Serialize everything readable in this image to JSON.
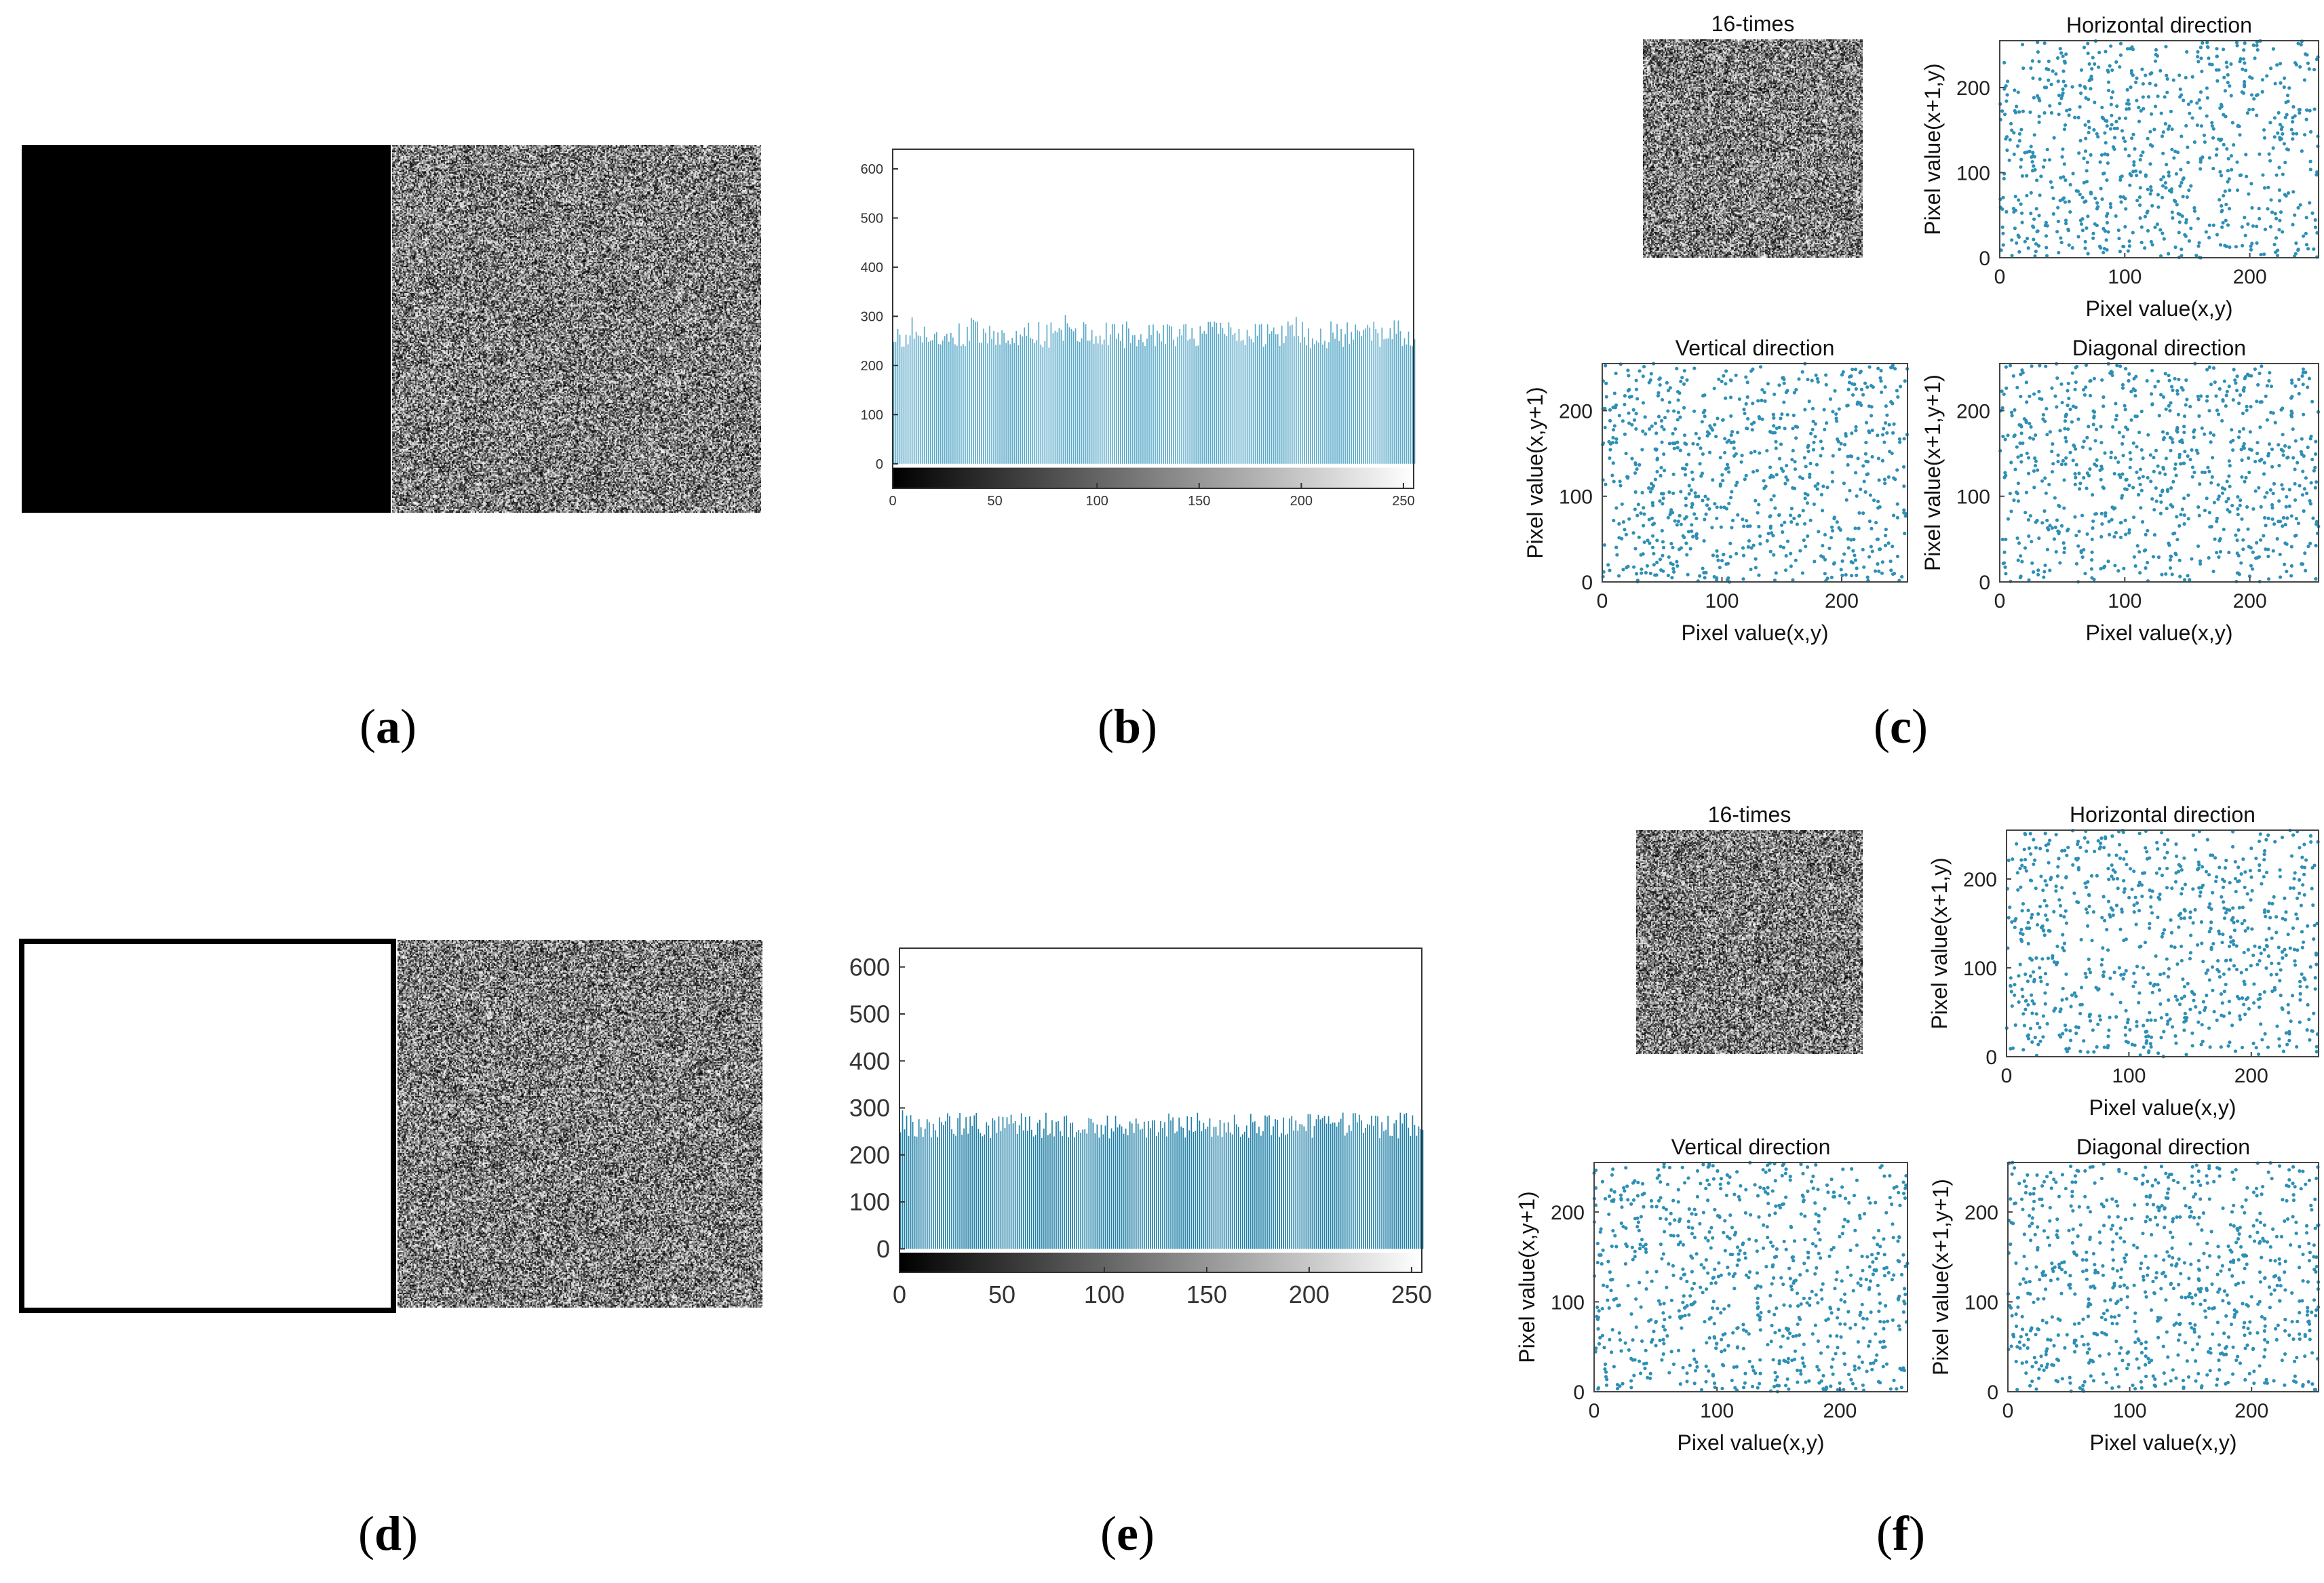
{
  "panel_labels": {
    "a": {
      "open": "(",
      "letter": "a",
      "close": ")"
    },
    "b": {
      "open": "(",
      "letter": "b",
      "close": ")"
    },
    "c": {
      "open": "(",
      "letter": "c",
      "close": ")"
    },
    "d": {
      "open": "(",
      "letter": "d",
      "close": ")"
    },
    "e": {
      "open": "(",
      "letter": "e",
      "close": ")"
    },
    "f": {
      "open": "(",
      "letter": "f",
      "close": ")"
    }
  },
  "colors": {
    "bar": "#5aa9c8",
    "bar_dark": "#1f7fa6",
    "scatter": "#2e8fb5",
    "axis": "#333333"
  },
  "chart_data": [
    {
      "id": "b",
      "type": "bar",
      "title": "",
      "xlabel": "",
      "ylabel": "",
      "xlim": [
        0,
        255
      ],
      "ylim": [
        -50,
        640
      ],
      "xticks": [
        0,
        50,
        100,
        150,
        200,
        250
      ],
      "yticks": [
        0,
        100,
        200,
        300,
        400,
        500,
        600
      ],
      "bins": 256,
      "value_mean": 256,
      "value_min": 220,
      "value_max": 300,
      "colorbar": "grayscale 0-255",
      "grid": false
    },
    {
      "id": "c",
      "type": "scatter",
      "subplots": [
        {
          "title": "16-times",
          "kind": "image"
        },
        {
          "title": "Horizontal direction",
          "xlabel": "Pixel value(x,y)",
          "ylabel": "Pixel value(x+1,y)",
          "xlim": [
            0,
            255
          ],
          "ylim": [
            0,
            255
          ],
          "xticks": [
            0,
            100,
            200
          ],
          "yticks": [
            0,
            100,
            200
          ],
          "points": 800
        },
        {
          "title": "Vertical direction",
          "xlabel": "Pixel value(x,y)",
          "ylabel": "Pixel value(x,y+1)",
          "xlim": [
            0,
            255
          ],
          "ylim": [
            0,
            255
          ],
          "xticks": [
            0,
            100,
            200
          ],
          "yticks": [
            0,
            100,
            200
          ],
          "points": 800
        },
        {
          "title": "Diagonal direction",
          "xlabel": "Pixel value(x,y)",
          "ylabel": "Pixel value(x+1,y+1)",
          "xlim": [
            0,
            255
          ],
          "ylim": [
            0,
            255
          ],
          "xticks": [
            0,
            100,
            200
          ],
          "yticks": [
            0,
            100,
            200
          ],
          "points": 800
        }
      ]
    },
    {
      "id": "e",
      "type": "bar",
      "title": "",
      "xlabel": "",
      "ylabel": "",
      "xlim": [
        0,
        255
      ],
      "ylim": [
        -50,
        640
      ],
      "xticks": [
        0,
        50,
        100,
        150,
        200,
        250
      ],
      "yticks": [
        0,
        100,
        200,
        300,
        400,
        500,
        600
      ],
      "bins": 256,
      "value_mean": 256,
      "value_min": 220,
      "value_max": 300,
      "colorbar": "grayscale 0-255",
      "grid": false
    },
    {
      "id": "f",
      "type": "scatter",
      "subplots": [
        {
          "title": "16-times",
          "kind": "image"
        },
        {
          "title": "Horizontal direction",
          "xlabel": "Pixel value(x,y)",
          "ylabel": "Pixel value(x+1,y)",
          "xlim": [
            0,
            255
          ],
          "ylim": [
            0,
            255
          ],
          "xticks": [
            0,
            100,
            200
          ],
          "yticks": [
            0,
            100,
            200
          ],
          "points": 800
        },
        {
          "title": "Vertical direction",
          "xlabel": "Pixel value(x,y)",
          "ylabel": "Pixel value(x,y+1)",
          "xlim": [
            0,
            255
          ],
          "ylim": [
            0,
            255
          ],
          "xticks": [
            0,
            100,
            200
          ],
          "yticks": [
            0,
            100,
            200
          ],
          "points": 800
        },
        {
          "title": "Diagonal direction",
          "xlabel": "Pixel value(x,y)",
          "ylabel": "Pixel value(x+1,y+1)",
          "xlim": [
            0,
            255
          ],
          "ylim": [
            0,
            255
          ],
          "xticks": [
            0,
            100,
            200
          ],
          "yticks": [
            0,
            100,
            200
          ],
          "points": 800
        }
      ]
    }
  ]
}
